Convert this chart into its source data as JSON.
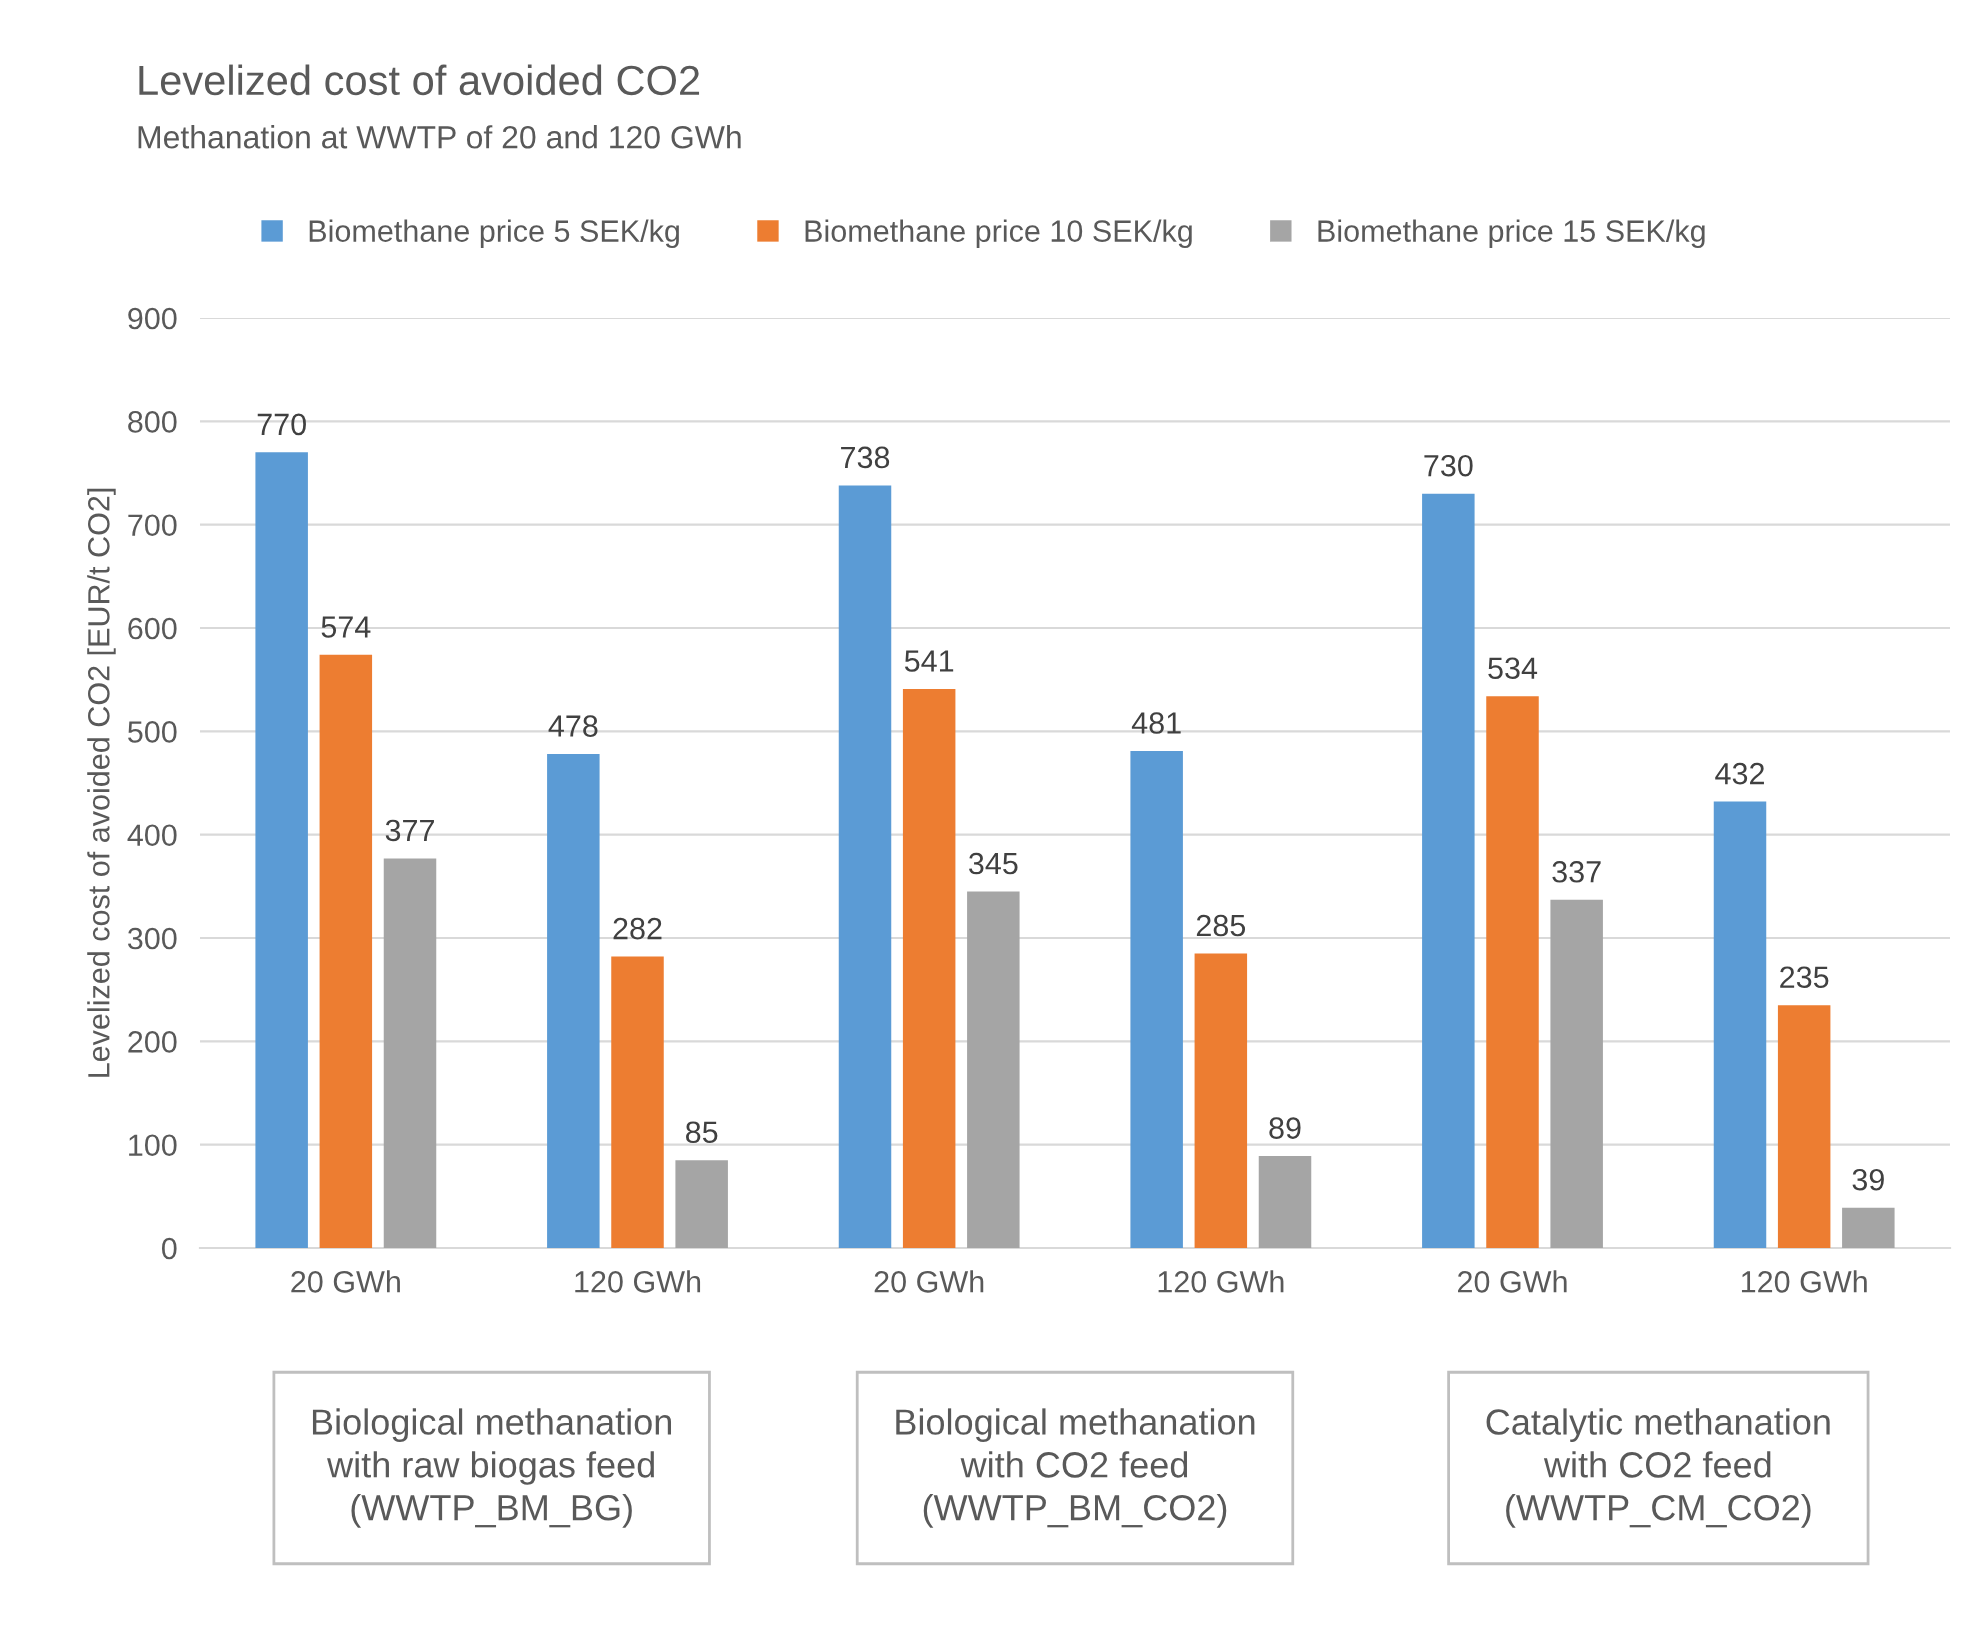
{
  "chart_data": {
    "type": "bar",
    "title": "Levelized cost of avoided CO2",
    "subtitle": "Methanation at WWTP of 20 and 120 GWh",
    "ylabel": "Levelized cost of avoided CO2 [EUR/t CO2]",
    "categories": [
      "20 GWh",
      "120 GWh",
      "20 GWh",
      "120 GWh",
      "20 GWh",
      "120 GWh"
    ],
    "series": [
      {
        "name": "Biomethane price 5 SEK/kg",
        "color": "#5b9bd5",
        "values": [
          770,
          478,
          738,
          481,
          730,
          432
        ]
      },
      {
        "name": "Biomethane price 10 SEK/kg",
        "color": "#ed7d31",
        "values": [
          574,
          282,
          541,
          285,
          534,
          235
        ]
      },
      {
        "name": "Biomethane price 15 SEK/kg",
        "color": "#a5a5a5",
        "values": [
          377,
          85,
          345,
          89,
          337,
          39
        ]
      }
    ],
    "ylim": [
      0,
      900
    ],
    "yticks": [
      0,
      100,
      200,
      300,
      400,
      500,
      600,
      700,
      800,
      900
    ],
    "grid": "y",
    "legend": "top",
    "data_labels": true,
    "annotations": [
      "Biological methanation\nwith raw biogas feed\n(WWTP_BM_BG)",
      "Biological methanation\nwith CO2 feed\n(WWTP_BM_CO2)",
      "Catalytic methanation\nwith CO2 feed\n(WWTP_CM_CO2)"
    ]
  }
}
